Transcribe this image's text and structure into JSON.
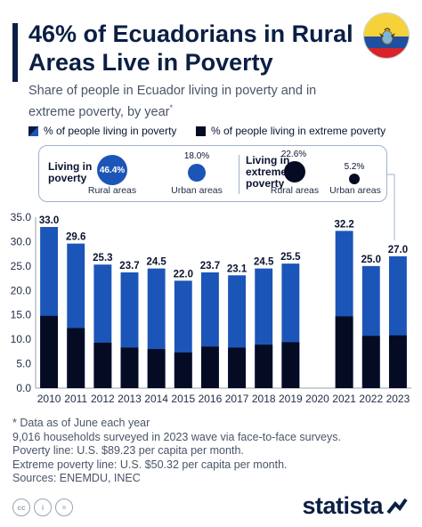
{
  "header": {
    "title": "46% of Ecuadorians in Rural Areas Live in Poverty",
    "subtitle": "Share of people in Ecuador living in poverty and in extreme poverty, by year",
    "subtitle_mark": "*"
  },
  "flag": {
    "icon": "ecuador-flag-icon",
    "colors": [
      "#f6d23a",
      "#1f4fa0",
      "#d8232a"
    ]
  },
  "legend": {
    "poverty": "% of people living in poverty",
    "extreme": "% of people living in extreme poverty"
  },
  "infobox": {
    "poverty_label_1": "Living in",
    "poverty_label_2": "poverty",
    "extreme_label_1": "Living in",
    "extreme_label_2": "extreme",
    "extreme_label_3": "poverty",
    "poverty_rural_value": "46.4%",
    "poverty_urban_value": "18.0%",
    "extreme_rural_value": "22.6%",
    "extreme_urban_value": "5.2%",
    "rural_caption": "Rural areas",
    "urban_caption": "Urban areas"
  },
  "colors": {
    "poverty": "#1c55b8",
    "extreme": "#060b24",
    "navy": "#0b1f44"
  },
  "chart_data": {
    "type": "bar",
    "stacked": "overlay",
    "categories": [
      "2010",
      "2011",
      "2012",
      "2013",
      "2014",
      "2015",
      "2016",
      "2017",
      "2018",
      "2019",
      "2020",
      "2021",
      "2022",
      "2023"
    ],
    "series": [
      {
        "name": "% of people living in poverty",
        "values": [
          33.0,
          29.6,
          25.3,
          23.7,
          24.5,
          22.0,
          23.7,
          23.1,
          24.5,
          25.5,
          null,
          32.2,
          25.0,
          27.0
        ]
      },
      {
        "name": "% of people living in extreme poverty",
        "values": [
          14.8,
          12.3,
          9.3,
          8.3,
          8.0,
          7.3,
          8.5,
          8.3,
          8.9,
          9.4,
          null,
          14.7,
          10.7,
          10.8
        ]
      }
    ],
    "value_labels": [
      "33.0",
      "29.6",
      "25.3",
      "23.7",
      "24.5",
      "22.0",
      "23.7",
      "23.1",
      "24.5",
      "25.5",
      "",
      "32.2",
      "25.0",
      "27.0"
    ],
    "ylim": [
      0,
      35
    ],
    "yticks": [
      "0.0",
      "5.0",
      "10.0",
      "15.0",
      "20.0",
      "25.0",
      "30.0",
      "35.0"
    ],
    "grid": false
  },
  "footnotes": [
    "* Data as of June each year",
    "9,016 households surveyed in 2023 wave via face-to-face surveys.",
    "Poverty line: U.S. $89.23 per capita per month.",
    "Extreme poverty line: U.S. $50.32 per capita per month.",
    "Sources: ENEMDU, INEC"
  ],
  "footer": {
    "cc_icons": [
      "cc-icon",
      "by-icon",
      "nd-icon"
    ],
    "cc_labels": [
      "cc",
      "i",
      "="
    ],
    "brand": "statista"
  }
}
